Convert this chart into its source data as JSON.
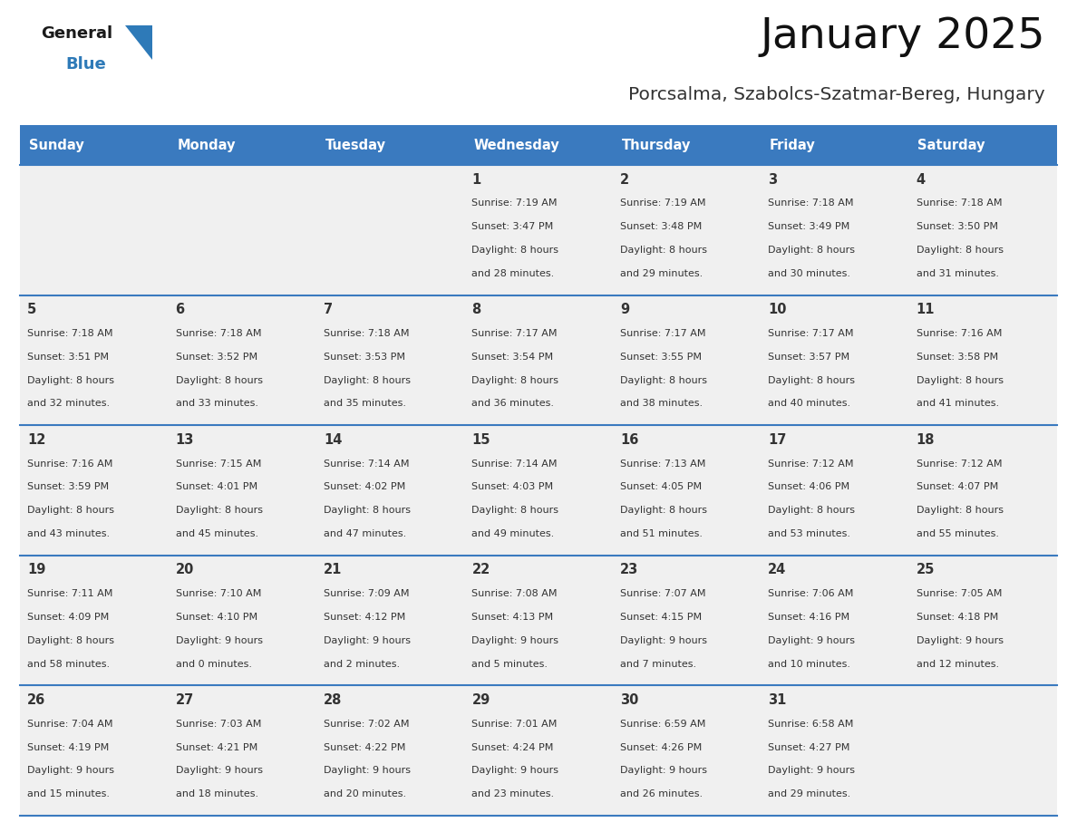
{
  "title": "January 2025",
  "subtitle": "Porcsalma, Szabolcs-Szatmar-Bereg, Hungary",
  "days_of_week": [
    "Sunday",
    "Monday",
    "Tuesday",
    "Wednesday",
    "Thursday",
    "Friday",
    "Saturday"
  ],
  "header_bg": "#3a7abf",
  "header_text": "#FFFFFF",
  "cell_bg": "#F0F0F0",
  "row_line_color": "#3a7abf",
  "text_color": "#333333",
  "logo_black": "#1a1a1a",
  "logo_blue": "#2E7AB8",
  "calendar_data": [
    [
      {
        "day": "",
        "sunrise": "",
        "sunset": "",
        "daylight_h": "",
        "daylight_m": ""
      },
      {
        "day": "",
        "sunrise": "",
        "sunset": "",
        "daylight_h": "",
        "daylight_m": ""
      },
      {
        "day": "",
        "sunrise": "",
        "sunset": "",
        "daylight_h": "",
        "daylight_m": ""
      },
      {
        "day": "1",
        "sunrise": "7:19 AM",
        "sunset": "3:47 PM",
        "daylight_h": "8",
        "daylight_m": "28"
      },
      {
        "day": "2",
        "sunrise": "7:19 AM",
        "sunset": "3:48 PM",
        "daylight_h": "8",
        "daylight_m": "29"
      },
      {
        "day": "3",
        "sunrise": "7:18 AM",
        "sunset": "3:49 PM",
        "daylight_h": "8",
        "daylight_m": "30"
      },
      {
        "day": "4",
        "sunrise": "7:18 AM",
        "sunset": "3:50 PM",
        "daylight_h": "8",
        "daylight_m": "31"
      }
    ],
    [
      {
        "day": "5",
        "sunrise": "7:18 AM",
        "sunset": "3:51 PM",
        "daylight_h": "8",
        "daylight_m": "32"
      },
      {
        "day": "6",
        "sunrise": "7:18 AM",
        "sunset": "3:52 PM",
        "daylight_h": "8",
        "daylight_m": "33"
      },
      {
        "day": "7",
        "sunrise": "7:18 AM",
        "sunset": "3:53 PM",
        "daylight_h": "8",
        "daylight_m": "35"
      },
      {
        "day": "8",
        "sunrise": "7:17 AM",
        "sunset": "3:54 PM",
        "daylight_h": "8",
        "daylight_m": "36"
      },
      {
        "day": "9",
        "sunrise": "7:17 AM",
        "sunset": "3:55 PM",
        "daylight_h": "8",
        "daylight_m": "38"
      },
      {
        "day": "10",
        "sunrise": "7:17 AM",
        "sunset": "3:57 PM",
        "daylight_h": "8",
        "daylight_m": "40"
      },
      {
        "day": "11",
        "sunrise": "7:16 AM",
        "sunset": "3:58 PM",
        "daylight_h": "8",
        "daylight_m": "41"
      }
    ],
    [
      {
        "day": "12",
        "sunrise": "7:16 AM",
        "sunset": "3:59 PM",
        "daylight_h": "8",
        "daylight_m": "43"
      },
      {
        "day": "13",
        "sunrise": "7:15 AM",
        "sunset": "4:01 PM",
        "daylight_h": "8",
        "daylight_m": "45"
      },
      {
        "day": "14",
        "sunrise": "7:14 AM",
        "sunset": "4:02 PM",
        "daylight_h": "8",
        "daylight_m": "47"
      },
      {
        "day": "15",
        "sunrise": "7:14 AM",
        "sunset": "4:03 PM",
        "daylight_h": "8",
        "daylight_m": "49"
      },
      {
        "day": "16",
        "sunrise": "7:13 AM",
        "sunset": "4:05 PM",
        "daylight_h": "8",
        "daylight_m": "51"
      },
      {
        "day": "17",
        "sunrise": "7:12 AM",
        "sunset": "4:06 PM",
        "daylight_h": "8",
        "daylight_m": "53"
      },
      {
        "day": "18",
        "sunrise": "7:12 AM",
        "sunset": "4:07 PM",
        "daylight_h": "8",
        "daylight_m": "55"
      }
    ],
    [
      {
        "day": "19",
        "sunrise": "7:11 AM",
        "sunset": "4:09 PM",
        "daylight_h": "8",
        "daylight_m": "58"
      },
      {
        "day": "20",
        "sunrise": "7:10 AM",
        "sunset": "4:10 PM",
        "daylight_h": "9",
        "daylight_m": "0"
      },
      {
        "day": "21",
        "sunrise": "7:09 AM",
        "sunset": "4:12 PM",
        "daylight_h": "9",
        "daylight_m": "2"
      },
      {
        "day": "22",
        "sunrise": "7:08 AM",
        "sunset": "4:13 PM",
        "daylight_h": "9",
        "daylight_m": "5"
      },
      {
        "day": "23",
        "sunrise": "7:07 AM",
        "sunset": "4:15 PM",
        "daylight_h": "9",
        "daylight_m": "7"
      },
      {
        "day": "24",
        "sunrise": "7:06 AM",
        "sunset": "4:16 PM",
        "daylight_h": "9",
        "daylight_m": "10"
      },
      {
        "day": "25",
        "sunrise": "7:05 AM",
        "sunset": "4:18 PM",
        "daylight_h": "9",
        "daylight_m": "12"
      }
    ],
    [
      {
        "day": "26",
        "sunrise": "7:04 AM",
        "sunset": "4:19 PM",
        "daylight_h": "9",
        "daylight_m": "15"
      },
      {
        "day": "27",
        "sunrise": "7:03 AM",
        "sunset": "4:21 PM",
        "daylight_h": "9",
        "daylight_m": "18"
      },
      {
        "day": "28",
        "sunrise": "7:02 AM",
        "sunset": "4:22 PM",
        "daylight_h": "9",
        "daylight_m": "20"
      },
      {
        "day": "29",
        "sunrise": "7:01 AM",
        "sunset": "4:24 PM",
        "daylight_h": "9",
        "daylight_m": "23"
      },
      {
        "day": "30",
        "sunrise": "6:59 AM",
        "sunset": "4:26 PM",
        "daylight_h": "9",
        "daylight_m": "26"
      },
      {
        "day": "31",
        "sunrise": "6:58 AM",
        "sunset": "4:27 PM",
        "daylight_h": "9",
        "daylight_m": "29"
      },
      {
        "day": "",
        "sunrise": "",
        "sunset": "",
        "daylight_h": "",
        "daylight_m": ""
      }
    ]
  ]
}
